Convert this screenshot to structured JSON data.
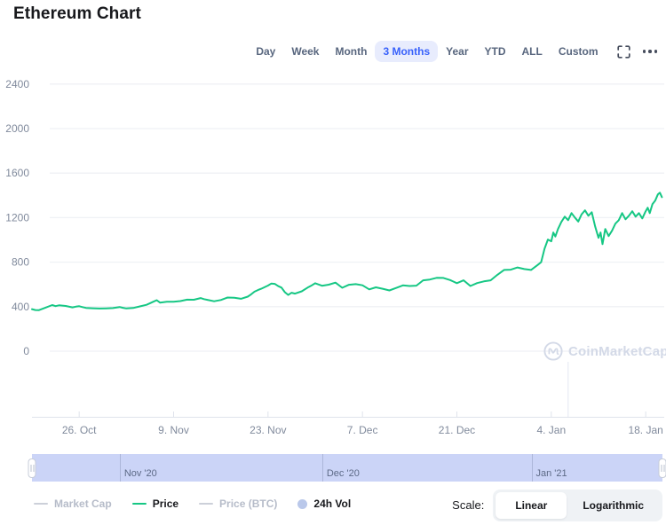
{
  "page": {
    "title": "Ethereum Chart"
  },
  "controls": {
    "ranges": [
      "Day",
      "Week",
      "Month",
      "3 Months",
      "Year",
      "YTD",
      "ALL",
      "Custom"
    ],
    "selected_range": "3 Months",
    "icons": [
      "fullscreen-icon",
      "ellipsis-icon"
    ]
  },
  "watermark": {
    "text": "CoinMarketCap",
    "icon": "coinmarketcap-logo-icon",
    "color": "#d3d9e7"
  },
  "chart_data": {
    "type": "line",
    "title": "Ethereum Chart",
    "xlabel": "",
    "ylabel": "",
    "start_date": "2020-10-19",
    "grid": "horizontal",
    "ylim": [
      0,
      2400
    ],
    "y_ticks": [
      0,
      400,
      800,
      1200,
      1600,
      2000,
      2400
    ],
    "x_ticks": [
      {
        "label": "26. Oct",
        "day": 7
      },
      {
        "label": "9. Nov",
        "day": 21
      },
      {
        "label": "23. Nov",
        "day": 35
      },
      {
        "label": "7. Dec",
        "day": 49
      },
      {
        "label": "21. Dec",
        "day": 63
      },
      {
        "label": "4. Jan",
        "day": 77
      },
      {
        "label": "18. Jan",
        "day": 91
      }
    ],
    "marker_line_day": 79.5,
    "series": [
      {
        "name": "Price",
        "unit": "USD",
        "color": "#16c784",
        "points": [
          [
            0,
            378
          ],
          [
            0.5,
            370
          ],
          [
            1,
            368
          ],
          [
            2,
            391
          ],
          [
            3,
            414
          ],
          [
            3.5,
            405
          ],
          [
            4,
            412
          ],
          [
            5,
            406
          ],
          [
            6,
            394
          ],
          [
            6.5,
            400
          ],
          [
            7,
            404
          ],
          [
            7.5,
            396
          ],
          [
            8,
            389
          ],
          [
            9,
            386
          ],
          [
            10,
            383
          ],
          [
            11,
            385
          ],
          [
            12,
            387
          ],
          [
            13,
            397
          ],
          [
            13.5,
            390
          ],
          [
            14,
            384
          ],
          [
            15,
            388
          ],
          [
            16,
            402
          ],
          [
            17,
            417
          ],
          [
            18,
            445
          ],
          [
            18.5,
            458
          ],
          [
            19,
            436
          ],
          [
            20,
            444
          ],
          [
            21,
            445
          ],
          [
            22,
            450
          ],
          [
            23,
            463
          ],
          [
            24,
            462
          ],
          [
            25,
            477
          ],
          [
            25.5,
            468
          ],
          [
            26,
            461
          ],
          [
            27,
            449
          ],
          [
            28,
            460
          ],
          [
            29,
            482
          ],
          [
            30,
            480
          ],
          [
            31,
            471
          ],
          [
            32,
            490
          ],
          [
            32.5,
            511
          ],
          [
            33,
            535
          ],
          [
            33.5,
            549
          ],
          [
            34,
            561
          ],
          [
            35,
            590
          ],
          [
            35.5,
            608
          ],
          [
            36,
            605
          ],
          [
            36.5,
            585
          ],
          [
            37,
            571
          ],
          [
            37.5,
            530
          ],
          [
            38,
            505
          ],
          [
            38.5,
            525
          ],
          [
            39,
            517
          ],
          [
            40,
            538
          ],
          [
            41,
            576
          ],
          [
            41.5,
            592
          ],
          [
            42,
            610
          ],
          [
            43,
            588
          ],
          [
            44,
            598
          ],
          [
            45,
            616
          ],
          [
            46,
            570
          ],
          [
            47,
            597
          ],
          [
            48,
            602
          ],
          [
            49,
            592
          ],
          [
            50,
            555
          ],
          [
            51,
            574
          ],
          [
            52,
            561
          ],
          [
            53,
            546
          ],
          [
            54,
            568
          ],
          [
            55,
            591
          ],
          [
            56,
            586
          ],
          [
            57,
            589
          ],
          [
            58,
            637
          ],
          [
            59,
            644
          ],
          [
            60,
            659
          ],
          [
            61,
            658
          ],
          [
            62,
            639
          ],
          [
            63,
            611
          ],
          [
            64,
            637
          ],
          [
            65,
            586
          ],
          [
            66,
            612
          ],
          [
            67,
            627
          ],
          [
            68,
            637
          ],
          [
            69,
            686
          ],
          [
            70,
            730
          ],
          [
            71,
            732
          ],
          [
            72,
            752
          ],
          [
            73,
            738
          ],
          [
            74,
            730
          ],
          [
            75,
            775
          ],
          [
            75.5,
            800
          ],
          [
            76,
            920
          ],
          [
            76.5,
            1003
          ],
          [
            77,
            987
          ],
          [
            77.3,
            1066
          ],
          [
            77.6,
            1030
          ],
          [
            78,
            1098
          ],
          [
            78.5,
            1162
          ],
          [
            79,
            1209
          ],
          [
            79.5,
            1177
          ],
          [
            80,
            1241
          ],
          [
            80.5,
            1201
          ],
          [
            81,
            1165
          ],
          [
            81.5,
            1230
          ],
          [
            82,
            1265
          ],
          [
            82.5,
            1217
          ],
          [
            83,
            1249
          ],
          [
            83.5,
            1121
          ],
          [
            84,
            1018
          ],
          [
            84.3,
            1066
          ],
          [
            84.6,
            962
          ],
          [
            85,
            1098
          ],
          [
            85.5,
            1034
          ],
          [
            86,
            1082
          ],
          [
            86.5,
            1146
          ],
          [
            87,
            1177
          ],
          [
            87.5,
            1241
          ],
          [
            88,
            1185
          ],
          [
            88.5,
            1217
          ],
          [
            89,
            1257
          ],
          [
            89.5,
            1209
          ],
          [
            90,
            1241
          ],
          [
            90.5,
            1193
          ],
          [
            91,
            1257
          ],
          [
            91.3,
            1289
          ],
          [
            91.6,
            1241
          ],
          [
            92,
            1320
          ],
          [
            92.4,
            1352
          ],
          [
            92.8,
            1408
          ],
          [
            93.1,
            1424
          ],
          [
            93.4,
            1384
          ]
        ]
      }
    ],
    "navigator": {
      "labels": [
        {
          "text": "Nov '20",
          "day": 13
        },
        {
          "text": "Dec '20",
          "day": 43
        },
        {
          "text": "Jan '21",
          "day": 74
        }
      ]
    }
  },
  "legend": {
    "items": [
      {
        "label": "Market Cap",
        "marker": "line",
        "active": false,
        "color": "#ccd0d9"
      },
      {
        "label": "Price",
        "marker": "line",
        "active": true,
        "color": "#16c784"
      },
      {
        "label": "Price (BTC)",
        "marker": "line",
        "active": false,
        "color": "#ccd0d9"
      },
      {
        "label": "24h Vol",
        "marker": "circle",
        "active": true,
        "color": "#bac8ea"
      }
    ]
  },
  "scale": {
    "label": "Scale:",
    "options": [
      "Linear",
      "Logarithmic"
    ],
    "selected": "Linear"
  },
  "colors": {
    "accent_blue": "#3861fb",
    "accent_blue_bg": "#e8ecfd",
    "price_green": "#16c784",
    "grid_line": "#eff1f5",
    "axis_line": "#dfe3ec",
    "axis_label": "#808a9c",
    "navigator_band": "#cbd4f7"
  }
}
